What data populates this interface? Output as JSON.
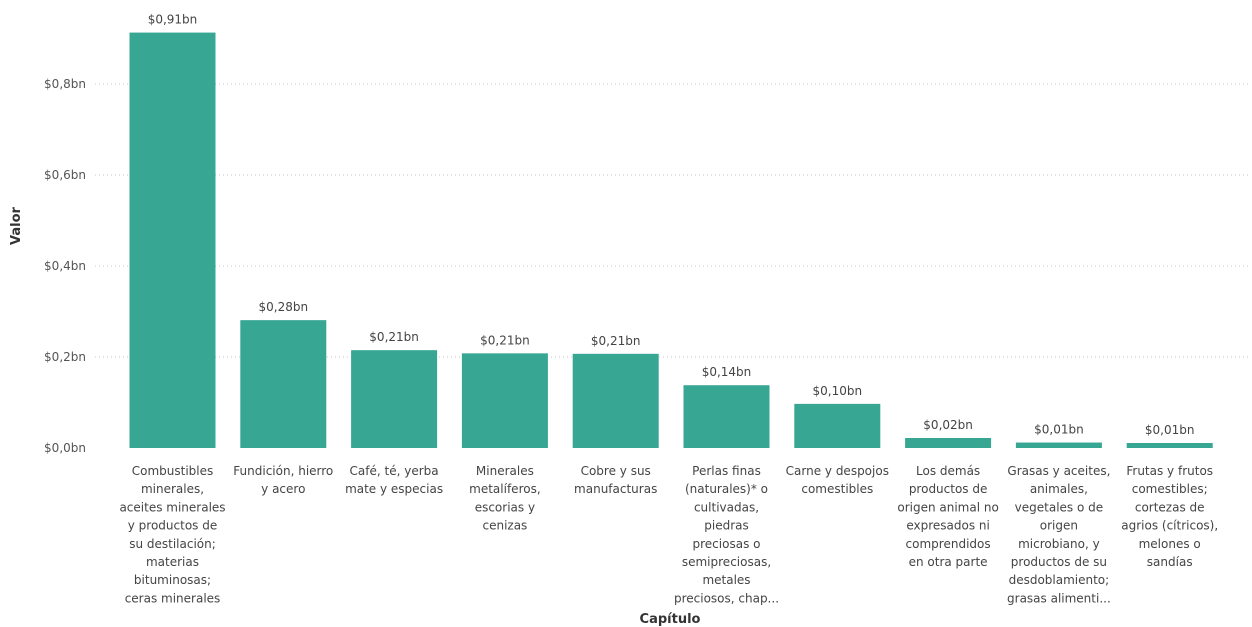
{
  "chart_data": {
    "type": "bar",
    "title": "",
    "xlabel": "Capítulo",
    "ylabel": "Valor",
    "ylim": [
      0,
      0.95
    ],
    "y_ticks": [
      0,
      0.2,
      0.4,
      0.6,
      0.8
    ],
    "y_tick_labels": [
      "$0,0bn",
      "$0,2bn",
      "$0,4bn",
      "$0,6bn",
      "$0,8bn"
    ],
    "grid": true,
    "bar_color": "#37A794",
    "categories": [
      "Combustibles minerales, aceites minerales y productos de su destilación; materias bituminosas; ceras minerales",
      "Fundición, hierro y acero",
      "Café, té, yerba mate y especias",
      "Minerales metalíferos, escorias y cenizas",
      "Cobre y sus manufacturas",
      "Perlas finas (naturales)* o cultivadas, piedras preciosas o semipreciosas, metales preciosos, chap...",
      "Carne y despojos comestibles",
      "Los demás productos de origen animal no expresados ni comprendidos en otra parte",
      "Grasas y aceites, animales, vegetales o de origen microbiano, y productos de su desdoblamiento; grasas alimenti...",
      "Frutas y frutos comestibles; cortezas de agrios (cítricos), melones o sandías"
    ],
    "category_lines": [
      [
        "Combustibles",
        "minerales,",
        "aceites minerales",
        "y productos de",
        "su destilación;",
        "materias",
        "bituminosas;",
        "ceras minerales"
      ],
      [
        "Fundición, hierro",
        "y acero"
      ],
      [
        "Café, té, yerba",
        "mate y especias"
      ],
      [
        "Minerales",
        "metalíferos,",
        "escorias y",
        "cenizas"
      ],
      [
        "Cobre y sus",
        "manufacturas"
      ],
      [
        "Perlas finas",
        "(naturales)* o",
        "cultivadas,",
        "piedras",
        "preciosas o",
        "semipreciosas,",
        "metales",
        "preciosos, chap..."
      ],
      [
        "Carne y despojos",
        "comestibles"
      ],
      [
        "Los demás",
        "productos de",
        "origen animal no",
        "expresados ni",
        "comprendidos",
        "en otra parte"
      ],
      [
        "Grasas y aceites,",
        "animales,",
        "vegetales o de",
        "origen",
        "microbiano, y",
        "productos de su",
        "desdoblamiento;",
        "grasas alimenti..."
      ],
      [
        "Frutas y frutos",
        "comestibles;",
        "cortezas de",
        "agrios (cítricos),",
        "melones o",
        "sandías"
      ]
    ],
    "values": [
      0.913,
      0.281,
      0.215,
      0.208,
      0.207,
      0.138,
      0.097,
      0.022,
      0.012,
      0.011
    ],
    "data_labels": [
      "$0,91bn",
      "$0,28bn",
      "$0,21bn",
      "$0,21bn",
      "$0,21bn",
      "$0,14bn",
      "$0,10bn",
      "$0,02bn",
      "$0,01bn",
      "$0,01bn"
    ]
  }
}
